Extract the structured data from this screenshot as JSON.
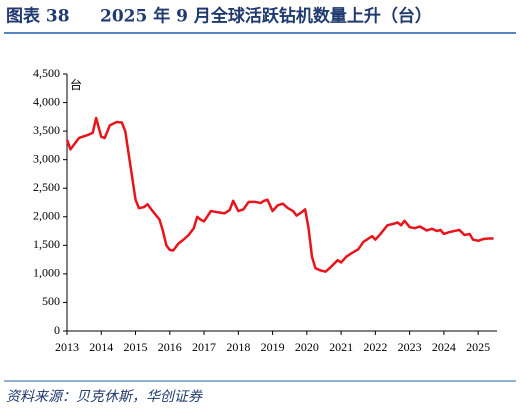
{
  "header": {
    "label": "图表 38"
  },
  "chart_data": {
    "type": "line",
    "title": "2025 年 9 月全球活跃钻机数量上升（台）",
    "y_unit": "台",
    "x": [
      2013.0,
      2013.1,
      2013.35,
      2013.6,
      2013.75,
      2013.85,
      2014.0,
      2014.1,
      2014.25,
      2014.45,
      2014.6,
      2014.7,
      2014.85,
      2015.0,
      2015.1,
      2015.25,
      2015.35,
      2015.5,
      2015.7,
      2015.8,
      2015.9,
      2016.0,
      2016.1,
      2016.25,
      2016.4,
      2016.55,
      2016.7,
      2016.8,
      2016.9,
      2017.0,
      2017.2,
      2017.4,
      2017.6,
      2017.75,
      2017.85,
      2018.0,
      2018.15,
      2018.3,
      2018.5,
      2018.65,
      2018.75,
      2018.85,
      2019.0,
      2019.15,
      2019.3,
      2019.45,
      2019.6,
      2019.7,
      2019.85,
      2019.95,
      2020.05,
      2020.15,
      2020.25,
      2020.4,
      2020.55,
      2020.7,
      2020.9,
      2021.0,
      2021.15,
      2021.3,
      2021.5,
      2021.65,
      2021.8,
      2021.9,
      2022.0,
      2022.15,
      2022.35,
      2022.55,
      2022.65,
      2022.75,
      2022.85,
      2023.0,
      2023.15,
      2023.3,
      2023.5,
      2023.65,
      2023.8,
      2023.9,
      2024.0,
      2024.15,
      2024.3,
      2024.45,
      2024.6,
      2024.75,
      2024.85,
      2025.0,
      2025.15,
      2025.3,
      2025.45
    ],
    "series": [
      {
        "name": "全球活跃钻机数量",
        "color": "#e8141b",
        "values": [
          3350,
          3180,
          3380,
          3430,
          3470,
          3730,
          3400,
          3380,
          3600,
          3660,
          3650,
          3500,
          2900,
          2300,
          2150,
          2170,
          2220,
          2100,
          1950,
          1750,
          1500,
          1420,
          1410,
          1530,
          1600,
          1680,
          1800,
          2000,
          1950,
          1920,
          2100,
          2080,
          2060,
          2120,
          2280,
          2100,
          2130,
          2260,
          2260,
          2240,
          2280,
          2300,
          2100,
          2200,
          2230,
          2150,
          2100,
          2020,
          2080,
          2130,
          1800,
          1300,
          1100,
          1060,
          1040,
          1120,
          1240,
          1200,
          1300,
          1360,
          1430,
          1560,
          1620,
          1660,
          1600,
          1700,
          1850,
          1880,
          1900,
          1850,
          1930,
          1820,
          1800,
          1830,
          1760,
          1790,
          1750,
          1770,
          1700,
          1730,
          1750,
          1770,
          1680,
          1700,
          1600,
          1580,
          1610,
          1620,
          1620
        ]
      }
    ],
    "xlim": [
      2013,
      2025.55
    ],
    "xticks": [
      2013,
      2014,
      2015,
      2016,
      2017,
      2018,
      2019,
      2020,
      2021,
      2022,
      2023,
      2024,
      2025
    ],
    "ylim": [
      0,
      4500
    ],
    "yticks": [
      0,
      500,
      {
        "value": 1000,
        "label": "1,000"
      },
      {
        "value": 1500,
        "label": "1,500"
      },
      {
        "value": 2000,
        "label": "2,000"
      },
      {
        "value": 2500,
        "label": "2,500"
      },
      {
        "value": 3000,
        "label": "3,000"
      },
      {
        "value": 3500,
        "label": "3,500"
      },
      {
        "value": 4000,
        "label": "4,000"
      },
      {
        "value": 4500,
        "label": "4,500"
      }
    ],
    "grid": false
  },
  "footer": {
    "source": "资料来源：贝克休斯，华创证券"
  }
}
